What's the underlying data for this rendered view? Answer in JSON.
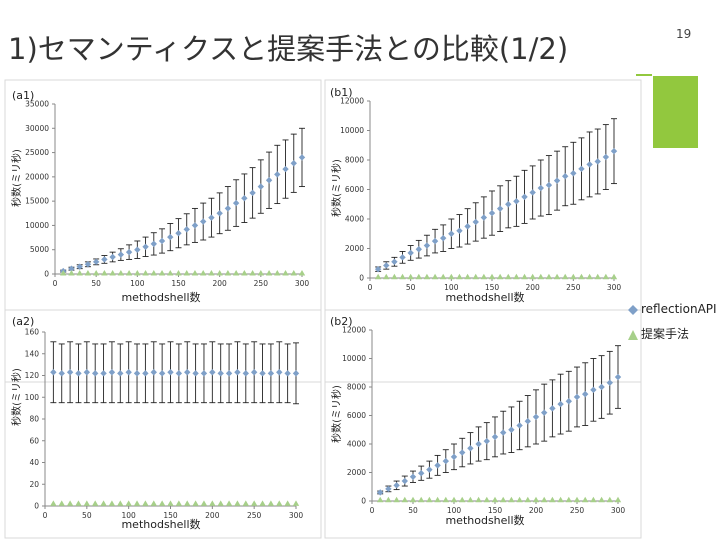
{
  "slide": {
    "title": "1)セマンティクスと提案手法との比較(1/2)",
    "page_number": "19",
    "accent_color": "#92c83e"
  },
  "legend": {
    "position": "right",
    "entries": [
      {
        "label": "reflectionAPI",
        "color": "#7fa0c8",
        "marker": "diamond"
      },
      {
        "label": "提案手法",
        "color": "#a7d08a",
        "marker": "triangle"
      }
    ]
  },
  "chart_data": [
    {
      "type": "line",
      "panel_label": "(a1)",
      "xlabel": "methodshell数",
      "ylabel": "秒数(ミリ秒)",
      "xlim": [
        0,
        300
      ],
      "ylim": [
        0,
        35000
      ],
      "xticks": [
        0,
        50,
        100,
        150,
        200,
        250,
        300
      ],
      "yticks": [
        0,
        5000,
        10000,
        15000,
        20000,
        25000,
        30000,
        35000
      ],
      "x": [
        10,
        20,
        30,
        40,
        50,
        60,
        70,
        80,
        90,
        100,
        110,
        120,
        130,
        140,
        150,
        160,
        170,
        180,
        190,
        200,
        210,
        220,
        230,
        240,
        250,
        260,
        270,
        280,
        290,
        300
      ],
      "series": [
        {
          "name": "reflectionAPI",
          "values": [
            600,
            1100,
            1500,
            2000,
            2500,
            3000,
            3500,
            4000,
            4500,
            5000,
            5600,
            6200,
            6800,
            7600,
            8400,
            9200,
            10000,
            10800,
            11600,
            12500,
            13500,
            14600,
            15600,
            16700,
            18000,
            19300,
            20500,
            21600,
            22800,
            24000
          ],
          "errors": [
            200,
            300,
            400,
            500,
            600,
            800,
            1000,
            1200,
            1500,
            1800,
            2000,
            2300,
            2500,
            2800,
            3000,
            3200,
            3500,
            3800,
            4000,
            4200,
            4500,
            4800,
            5000,
            5200,
            5500,
            5800,
            6000,
            6000,
            6000,
            6000
          ]
        },
        {
          "name": "提案手法",
          "values": [
            100,
            100,
            100,
            100,
            100,
            100,
            100,
            100,
            100,
            100,
            100,
            100,
            100,
            100,
            100,
            100,
            100,
            100,
            100,
            100,
            100,
            100,
            100,
            100,
            100,
            100,
            100,
            100,
            100,
            100
          ],
          "errors": [
            0,
            0,
            0,
            0,
            0,
            0,
            0,
            0,
            0,
            0,
            0,
            0,
            0,
            0,
            0,
            0,
            0,
            0,
            0,
            0,
            0,
            0,
            0,
            0,
            0,
            0,
            0,
            0,
            0,
            0
          ]
        }
      ]
    },
    {
      "type": "line",
      "panel_label": "(b1)",
      "xlabel": "methodshell数",
      "ylabel": "秒数(ミリ秒)",
      "xlim": [
        0,
        300
      ],
      "ylim": [
        0,
        12000
      ],
      "xticks": [
        0,
        50,
        100,
        150,
        200,
        250,
        300
      ],
      "yticks": [
        0,
        2000,
        4000,
        6000,
        8000,
        10000,
        12000
      ],
      "x": [
        10,
        20,
        30,
        40,
        50,
        60,
        70,
        80,
        90,
        100,
        110,
        120,
        130,
        140,
        150,
        160,
        170,
        180,
        190,
        200,
        210,
        220,
        230,
        240,
        250,
        260,
        270,
        280,
        290,
        300
      ],
      "series": [
        {
          "name": "reflectionAPI",
          "values": [
            600,
            850,
            1100,
            1400,
            1700,
            1950,
            2200,
            2500,
            2700,
            3000,
            3200,
            3500,
            3800,
            4100,
            4400,
            4700,
            5000,
            5200,
            5500,
            5800,
            6100,
            6300,
            6600,
            6900,
            7100,
            7400,
            7700,
            7900,
            8200,
            8600
          ],
          "errors": [
            150,
            250,
            300,
            400,
            500,
            600,
            700,
            800,
            900,
            1000,
            1100,
            1200,
            1300,
            1400,
            1500,
            1550,
            1600,
            1700,
            1800,
            1800,
            1900,
            2000,
            2000,
            2000,
            2100,
            2100,
            2200,
            2200,
            2200,
            2200
          ]
        },
        {
          "name": "提案手法",
          "values": [
            50,
            50,
            50,
            50,
            50,
            50,
            50,
            50,
            50,
            50,
            50,
            50,
            50,
            50,
            50,
            50,
            50,
            50,
            50,
            50,
            50,
            50,
            50,
            50,
            50,
            50,
            50,
            50,
            50,
            50
          ],
          "errors": [
            0,
            0,
            0,
            0,
            0,
            0,
            0,
            0,
            0,
            0,
            0,
            0,
            0,
            0,
            0,
            0,
            0,
            0,
            0,
            0,
            0,
            0,
            0,
            0,
            0,
            0,
            0,
            0,
            0,
            0
          ]
        }
      ]
    },
    {
      "type": "line",
      "panel_label": "(a2)",
      "xlabel": "methodshell数",
      "ylabel": "秒数(ミリ秒)",
      "xlim": [
        0,
        300
      ],
      "ylim": [
        0,
        160
      ],
      "xticks": [
        0,
        50,
        100,
        150,
        200,
        250,
        300
      ],
      "yticks": [
        0,
        20,
        40,
        60,
        80,
        100,
        120,
        140,
        160
      ],
      "x": [
        10,
        20,
        30,
        40,
        50,
        60,
        70,
        80,
        90,
        100,
        110,
        120,
        130,
        140,
        150,
        160,
        170,
        180,
        190,
        200,
        210,
        220,
        230,
        240,
        250,
        260,
        270,
        280,
        290,
        300
      ],
      "series": [
        {
          "name": "reflectionAPI",
          "values": [
            123,
            122,
            123,
            122,
            123,
            122,
            122,
            123,
            122,
            123,
            122,
            122,
            123,
            122,
            123,
            122,
            123,
            122,
            122,
            123,
            122,
            122,
            123,
            122,
            123,
            122,
            122,
            123,
            122,
            122
          ],
          "errors": [
            28,
            27,
            28,
            27,
            28,
            27,
            27,
            28,
            27,
            28,
            27,
            27,
            28,
            27,
            28,
            27,
            28,
            27,
            27,
            28,
            27,
            27,
            28,
            27,
            28,
            27,
            27,
            28,
            27,
            28
          ]
        },
        {
          "name": "提案手法",
          "values": [
            2,
            2,
            2,
            2,
            2,
            2,
            2,
            2,
            2,
            2,
            2,
            2,
            2,
            2,
            2,
            2,
            2,
            2,
            2,
            2,
            2,
            2,
            2,
            2,
            2,
            2,
            2,
            2,
            2,
            2
          ],
          "errors": [
            0,
            0,
            0,
            0,
            0,
            0,
            0,
            0,
            0,
            0,
            0,
            0,
            0,
            0,
            0,
            0,
            0,
            0,
            0,
            0,
            0,
            0,
            0,
            0,
            0,
            0,
            0,
            0,
            0,
            0
          ]
        }
      ]
    },
    {
      "type": "line",
      "panel_label": "(b2)",
      "xlabel": "methodshell数",
      "ylabel": "秒数(ミリ秒)",
      "xlim": [
        0,
        300
      ],
      "ylim": [
        0,
        12000
      ],
      "xticks": [
        0,
        50,
        100,
        150,
        200,
        250,
        300
      ],
      "yticks": [
        0,
        2000,
        4000,
        6000,
        8000,
        10000,
        12000
      ],
      "x": [
        10,
        20,
        30,
        40,
        50,
        60,
        70,
        80,
        90,
        100,
        110,
        120,
        130,
        140,
        150,
        160,
        170,
        180,
        190,
        200,
        210,
        220,
        230,
        240,
        250,
        260,
        270,
        280,
        290,
        300
      ],
      "series": [
        {
          "name": "reflectionAPI",
          "values": [
            600,
            850,
            1100,
            1400,
            1700,
            1950,
            2200,
            2500,
            2800,
            3100,
            3400,
            3700,
            4000,
            4200,
            4500,
            4800,
            5000,
            5300,
            5600,
            5900,
            6200,
            6500,
            6800,
            7000,
            7300,
            7500,
            7800,
            8000,
            8300,
            8700
          ],
          "errors": [
            100,
            200,
            300,
            350,
            400,
            500,
            600,
            700,
            800,
            900,
            1000,
            1100,
            1200,
            1300,
            1400,
            1500,
            1600,
            1700,
            1800,
            1900,
            2000,
            2000,
            2100,
            2100,
            2100,
            2200,
            2200,
            2200,
            2200,
            2200
          ]
        },
        {
          "name": "提案手法",
          "values": [
            50,
            50,
            50,
            50,
            50,
            50,
            50,
            50,
            50,
            50,
            50,
            50,
            50,
            50,
            50,
            50,
            50,
            50,
            50,
            50,
            50,
            50,
            50,
            50,
            50,
            50,
            50,
            50,
            50,
            50
          ],
          "errors": [
            0,
            0,
            0,
            0,
            0,
            0,
            0,
            0,
            0,
            0,
            0,
            0,
            0,
            0,
            0,
            0,
            0,
            0,
            0,
            0,
            0,
            0,
            0,
            0,
            0,
            0,
            0,
            0,
            0,
            0
          ]
        }
      ]
    }
  ]
}
